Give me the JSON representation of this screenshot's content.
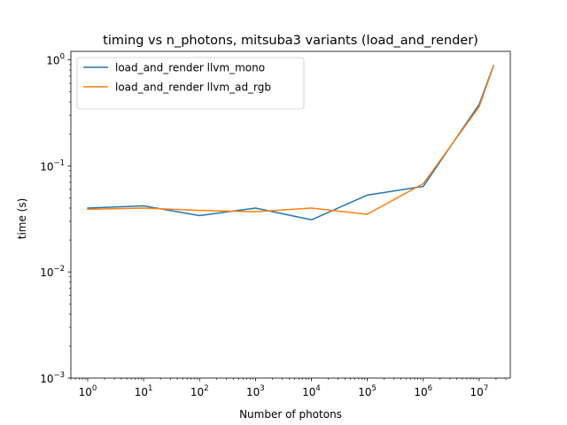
{
  "chart_data": {
    "type": "line",
    "title": "timing vs n_photons, mitsuba3 variants (load_and_render)",
    "xlabel": "Number of photons",
    "ylabel": "time (s)",
    "xscale": "log",
    "yscale": "log",
    "xlim": [
      0.5,
      36000000
    ],
    "ylim": [
      0.001,
      1.2
    ],
    "grid": false,
    "legend_position": "top-left",
    "x_ticks": [
      {
        "base": "10",
        "exp": "0",
        "value": 1
      },
      {
        "base": "10",
        "exp": "1",
        "value": 10
      },
      {
        "base": "10",
        "exp": "2",
        "value": 100
      },
      {
        "base": "10",
        "exp": "3",
        "value": 1000
      },
      {
        "base": "10",
        "exp": "4",
        "value": 10000
      },
      {
        "base": "10",
        "exp": "5",
        "value": 100000
      },
      {
        "base": "10",
        "exp": "6",
        "value": 1000000
      },
      {
        "base": "10",
        "exp": "7",
        "value": 10000000
      }
    ],
    "y_ticks": [
      {
        "base": "10",
        "exp": "−3",
        "value": 0.001
      },
      {
        "base": "10",
        "exp": "−2",
        "value": 0.01
      },
      {
        "base": "10",
        "exp": "−1",
        "value": 0.1
      },
      {
        "base": "10",
        "exp": "0",
        "value": 1
      }
    ],
    "x": [
      1,
      10,
      100,
      1000,
      10000,
      100000,
      1000000,
      10000000,
      18000000
    ],
    "series": [
      {
        "name": "load_and_render llvm_mono",
        "color": "#1f77b4",
        "values": [
          0.04,
          0.042,
          0.034,
          0.04,
          0.031,
          0.053,
          0.064,
          0.38,
          0.88
        ]
      },
      {
        "name": "load_and_render llvm_ad_rgb",
        "color": "#ff7f0e",
        "values": [
          0.039,
          0.04,
          0.038,
          0.037,
          0.04,
          0.035,
          0.068,
          0.36,
          0.87
        ]
      }
    ]
  }
}
